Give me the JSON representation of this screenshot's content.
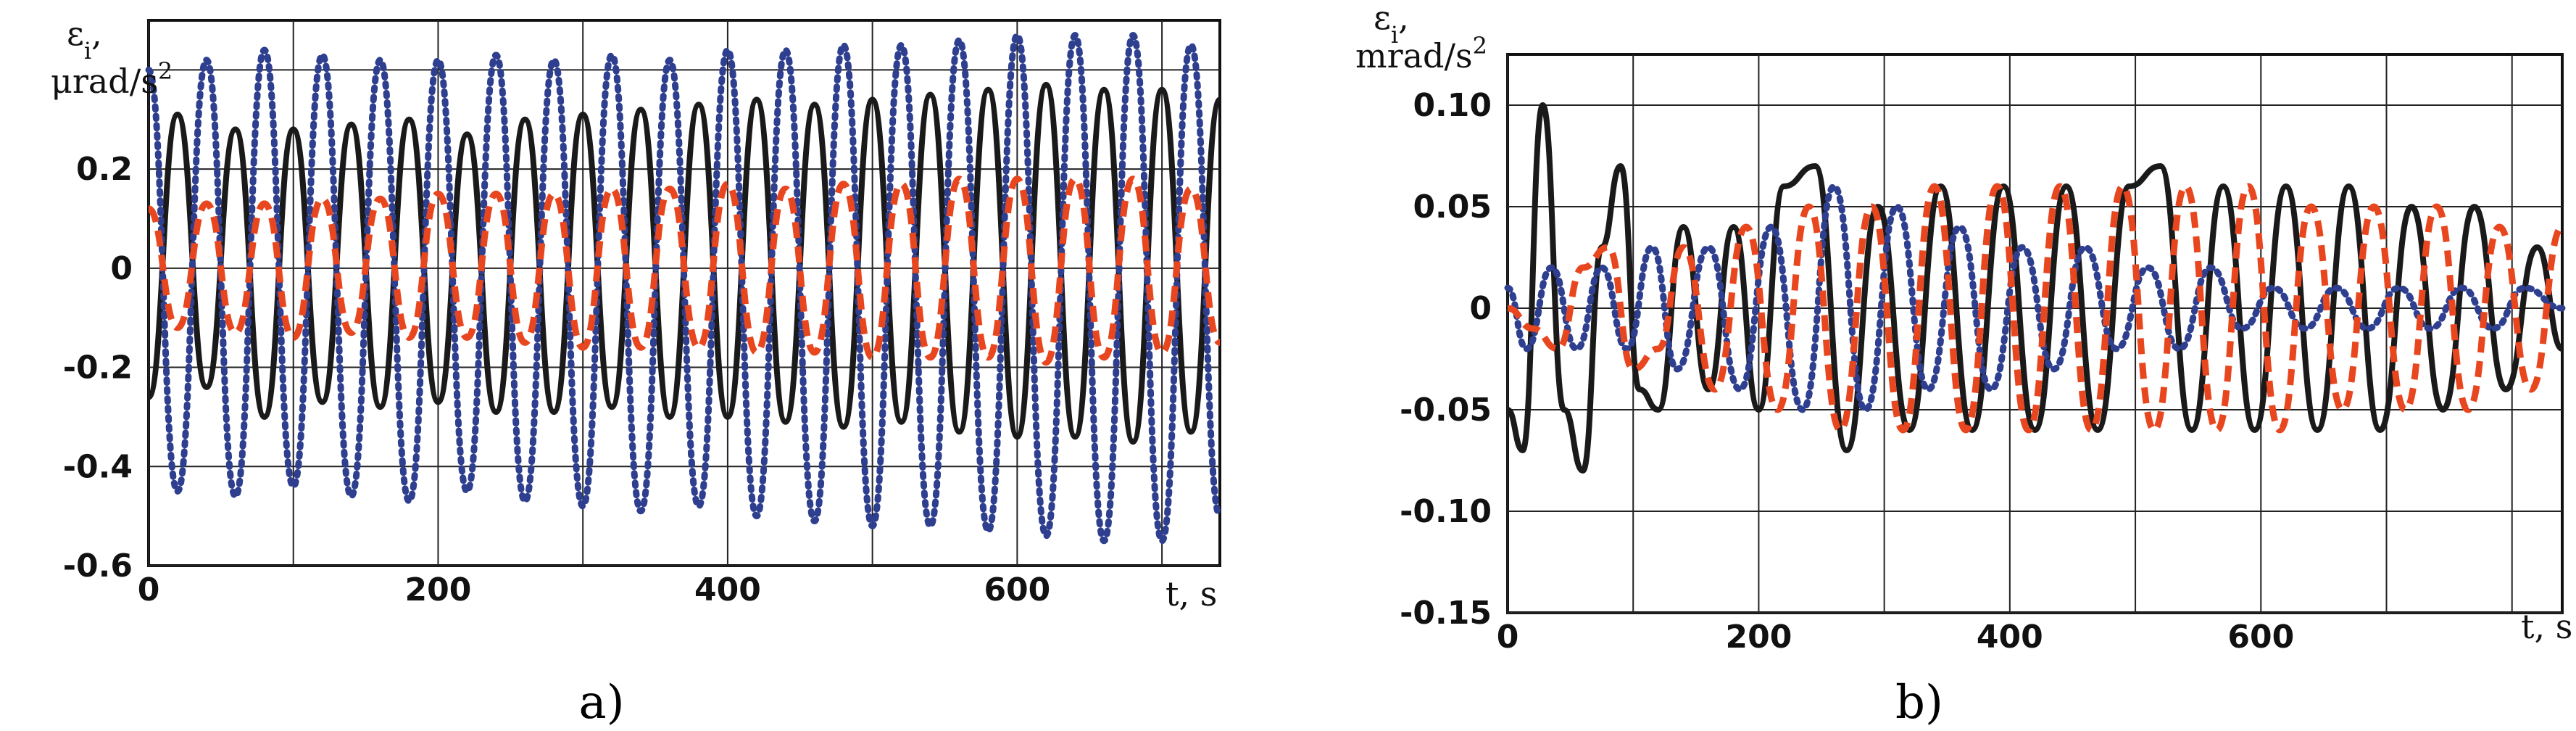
{
  "chart_data": [
    {
      "type": "line",
      "panel_label": "a)",
      "ylabel_line1": "ε",
      "ylabel_sub": "i",
      "ylabel_line2": "μrad/s",
      "ylabel_sup": "2",
      "xlabel": "t, s",
      "xlim": [
        0,
        740
      ],
      "ylim": [
        -0.6,
        0.5
      ],
      "x_ticks": [
        0,
        200,
        400,
        600
      ],
      "x_tick_labels": [
        "0",
        "200",
        "400",
        "600"
      ],
      "x_grid": [
        0,
        100,
        200,
        300,
        400,
        500,
        600,
        700
      ],
      "y_ticks": [
        -0.6,
        -0.4,
        -0.2,
        0,
        0.2
      ],
      "y_tick_labels": [
        "-0.6",
        "-0.4",
        "-0.2",
        "0",
        "0.2"
      ],
      "y_grid": [
        -0.6,
        -0.4,
        -0.2,
        0,
        0.2,
        0.4
      ],
      "grid": true,
      "series": [
        {
          "style": "solid",
          "color": "#1a1a1a",
          "x": [
            0,
            20,
            40,
            60,
            80,
            100,
            120,
            140,
            160,
            180,
            200,
            220,
            240,
            260,
            280,
            300,
            320,
            340,
            360,
            380,
            400,
            420,
            440,
            460,
            480,
            500,
            520,
            540,
            560,
            580,
            600,
            620,
            640,
            660,
            680,
            700,
            720,
            740
          ],
          "y": [
            -0.26,
            0.31,
            -0.24,
            0.28,
            -0.3,
            0.28,
            -0.27,
            0.29,
            -0.28,
            0.3,
            -0.27,
            0.27,
            -0.29,
            0.3,
            -0.29,
            0.31,
            -0.28,
            0.32,
            -0.3,
            0.33,
            -0.3,
            0.34,
            -0.31,
            0.33,
            -0.32,
            0.34,
            -0.31,
            0.35,
            -0.33,
            0.36,
            -0.34,
            0.37,
            -0.34,
            0.36,
            -0.35,
            0.36,
            -0.33,
            0.34
          ]
        },
        {
          "style": "dotted",
          "color": "#2e3f8f",
          "x": [
            0,
            20,
            40,
            60,
            80,
            100,
            120,
            140,
            160,
            180,
            200,
            220,
            240,
            260,
            280,
            300,
            320,
            340,
            360,
            380,
            400,
            420,
            440,
            460,
            480,
            500,
            520,
            540,
            560,
            580,
            600,
            620,
            640,
            660,
            680,
            700,
            720,
            740
          ],
          "y": [
            0.4,
            -0.45,
            0.42,
            -0.46,
            0.44,
            -0.44,
            0.43,
            -0.46,
            0.42,
            -0.47,
            0.42,
            -0.45,
            0.43,
            -0.47,
            0.42,
            -0.48,
            0.43,
            -0.49,
            0.42,
            -0.48,
            0.44,
            -0.5,
            0.44,
            -0.51,
            0.45,
            -0.52,
            0.45,
            -0.52,
            0.46,
            -0.53,
            0.47,
            -0.54,
            0.47,
            -0.55,
            0.47,
            -0.55,
            0.45,
            -0.5
          ]
        },
        {
          "style": "dashed",
          "color": "#e8461e",
          "x": [
            0,
            20,
            40,
            60,
            80,
            100,
            120,
            140,
            160,
            180,
            200,
            220,
            240,
            260,
            280,
            300,
            320,
            340,
            360,
            380,
            400,
            420,
            440,
            460,
            480,
            500,
            520,
            540,
            560,
            580,
            600,
            620,
            640,
            660,
            680,
            700,
            720,
            740
          ],
          "y": [
            0.12,
            -0.12,
            0.13,
            -0.13,
            0.13,
            -0.14,
            0.14,
            -0.13,
            0.14,
            -0.14,
            0.15,
            -0.14,
            0.15,
            -0.15,
            0.15,
            -0.16,
            0.16,
            -0.16,
            0.16,
            -0.16,
            0.17,
            -0.17,
            0.16,
            -0.17,
            0.17,
            -0.18,
            0.17,
            -0.18,
            0.18,
            -0.18,
            0.18,
            -0.19,
            0.18,
            -0.18,
            0.18,
            -0.17,
            0.16,
            -0.15
          ]
        }
      ]
    },
    {
      "type": "line",
      "panel_label": "b)",
      "ylabel_line1": "ε",
      "ylabel_sub": "i",
      "ylabel_line2": "mrad/s",
      "ylabel_sup": "2",
      "xlabel": "t, s",
      "xlim": [
        0,
        840
      ],
      "ylim": [
        -0.15,
        0.125
      ],
      "x_ticks": [
        0,
        200,
        400,
        600
      ],
      "x_tick_labels": [
        "0",
        "200",
        "400",
        "600"
      ],
      "x_grid": [
        0,
        100,
        200,
        300,
        400,
        500,
        600,
        700,
        800
      ],
      "y_ticks": [
        -0.15,
        -0.1,
        -0.05,
        0,
        0.05,
        0.1
      ],
      "y_tick_labels": [
        "-0.15",
        "-0.10",
        "-0.05",
        "0",
        "0.05",
        "0.10"
      ],
      "y_grid": [
        -0.15,
        -0.1,
        -0.05,
        0,
        0.05,
        0.1
      ],
      "grid": true,
      "series": [
        {
          "style": "solid",
          "color": "#1a1a1a",
          "x": [
            0,
            12,
            28,
            45,
            60,
            75,
            90,
            105,
            120,
            140,
            160,
            180,
            200,
            220,
            245,
            270,
            295,
            320,
            345,
            370,
            395,
            420,
            445,
            470,
            495,
            520,
            545,
            570,
            595,
            620,
            645,
            670,
            695,
            720,
            745,
            770,
            795,
            820,
            840
          ],
          "y": [
            -0.05,
            -0.07,
            0.1,
            -0.05,
            -0.08,
            0.03,
            0.07,
            -0.04,
            -0.05,
            0.04,
            -0.04,
            0.04,
            -0.05,
            0.06,
            0.07,
            -0.07,
            0.05,
            -0.06,
            0.06,
            -0.06,
            0.06,
            -0.06,
            0.06,
            -0.06,
            0.06,
            0.07,
            -0.06,
            0.06,
            -0.06,
            0.06,
            -0.06,
            0.06,
            -0.06,
            0.05,
            -0.05,
            0.05,
            -0.04,
            0.03,
            -0.02
          ]
        },
        {
          "style": "dotted",
          "color": "#2e3f8f",
          "x": [
            0,
            15,
            35,
            55,
            75,
            95,
            115,
            135,
            160,
            185,
            210,
            235,
            260,
            285,
            310,
            335,
            360,
            385,
            410,
            435,
            460,
            485,
            510,
            535,
            560,
            585,
            610,
            635,
            660,
            685,
            710,
            735,
            760,
            785,
            810,
            840
          ],
          "y": [
            0.01,
            -0.02,
            0.02,
            -0.02,
            0.02,
            -0.02,
            0.03,
            -0.03,
            0.03,
            -0.04,
            0.04,
            -0.05,
            0.06,
            -0.05,
            0.05,
            -0.04,
            0.04,
            -0.04,
            0.03,
            -0.03,
            0.03,
            -0.02,
            0.02,
            -0.02,
            0.02,
            -0.01,
            0.01,
            -0.01,
            0.01,
            -0.01,
            0.01,
            -0.01,
            0.01,
            -0.01,
            0.01,
            0.0
          ]
        },
        {
          "style": "dashed",
          "color": "#e8461e",
          "x": [
            0,
            20,
            40,
            60,
            80,
            100,
            120,
            140,
            165,
            190,
            215,
            240,
            265,
            290,
            315,
            340,
            365,
            390,
            415,
            440,
            465,
            490,
            515,
            540,
            565,
            590,
            615,
            640,
            665,
            690,
            715,
            740,
            765,
            790,
            815,
            840
          ],
          "y": [
            0.0,
            -0.01,
            -0.02,
            0.02,
            0.03,
            -0.03,
            -0.02,
            0.03,
            -0.04,
            0.04,
            -0.05,
            0.05,
            -0.06,
            0.05,
            -0.06,
            0.06,
            -0.06,
            0.06,
            -0.06,
            0.06,
            -0.06,
            0.06,
            -0.06,
            0.06,
            -0.06,
            0.06,
            -0.06,
            0.05,
            -0.05,
            0.05,
            -0.05,
            0.05,
            -0.05,
            0.04,
            -0.04,
            0.04
          ]
        }
      ]
    }
  ]
}
